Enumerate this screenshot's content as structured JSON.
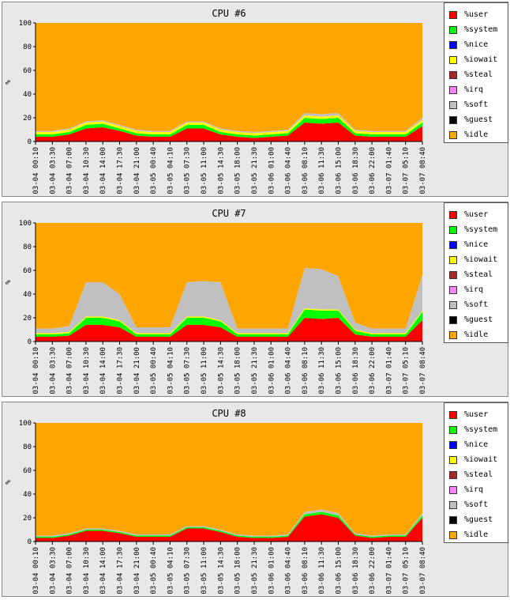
{
  "chart_data": [
    {
      "type": "area",
      "title": "CPU #6",
      "ylabel": "%",
      "xlabel": "",
      "ylim": [
        0,
        100
      ],
      "yticks": [
        0,
        20,
        40,
        60,
        80,
        100
      ],
      "stacked": true,
      "legend_placement": "right",
      "x_tick_labels": [
        "03-04 00:10",
        "03-04 03:30",
        "03-04 07:00",
        "03-04 10:30",
        "03-04 14:00",
        "03-04 17:30",
        "03-04 21:00",
        "03-05 00:40",
        "03-05 04:10",
        "03-05 07:30",
        "03-05 11:00",
        "03-05 14:30",
        "03-05 18:00",
        "03-05 21:30",
        "03-06 01:00",
        "03-06 04:40",
        "03-06 08:10",
        "03-06 11:30",
        "03-06 15:00",
        "03-06 18:30",
        "03-06 22:00",
        "03-07 01:40",
        "03-07 05:10",
        "03-07 08:40"
      ],
      "x": [
        "00:10",
        "03:30",
        "07:00",
        "10:30",
        "14:00",
        "17:30",
        "21:00",
        "00:40",
        "04:10",
        "07:30",
        "11:00",
        "14:30",
        "18:00",
        "21:30",
        "01:00",
        "04:40",
        "08:10",
        "11:30",
        "15:00",
        "18:30",
        "22:00",
        "01:40",
        "05:10",
        "08:40"
      ],
      "series": [
        {
          "name": "%user",
          "color": "#ff0000",
          "values": [
            4,
            4,
            6,
            11,
            12,
            9,
            5,
            4,
            4,
            11,
            11,
            6,
            4,
            3,
            4,
            5,
            16,
            15,
            16,
            5,
            4,
            4,
            4,
            13
          ]
        },
        {
          "name": "%system",
          "color": "#00ff00",
          "values": [
            2,
            2,
            2,
            3,
            3,
            2,
            2,
            2,
            2,
            3,
            3,
            2,
            2,
            2,
            2,
            2,
            4,
            4,
            4,
            2,
            2,
            2,
            2,
            3
          ]
        },
        {
          "name": "%nice",
          "color": "#0000ff",
          "values": [
            0,
            0,
            0,
            0,
            0,
            0,
            0,
            0,
            0,
            0,
            0,
            0,
            0,
            0,
            0,
            0,
            0,
            0,
            0,
            0,
            0,
            0,
            0,
            0
          ]
        },
        {
          "name": "%iowait",
          "color": "#ffff00",
          "values": [
            2,
            2,
            2,
            2,
            2,
            2,
            2,
            2,
            2,
            2,
            2,
            2,
            2,
            2,
            2,
            2,
            2,
            2,
            2,
            2,
            2,
            2,
            2,
            2
          ]
        },
        {
          "name": "%steal",
          "color": "#a52a2a",
          "values": [
            0,
            0,
            0,
            0,
            0,
            0,
            0,
            0,
            0,
            0,
            0,
            0,
            0,
            0,
            0,
            0,
            0,
            0,
            0,
            0,
            0,
            0,
            0,
            0
          ]
        },
        {
          "name": "%irq",
          "color": "#ff80ff",
          "values": [
            0,
            0,
            0,
            0,
            0,
            0,
            0,
            0,
            0,
            0,
            0,
            0,
            0,
            0,
            0,
            0,
            0,
            0,
            0,
            0,
            0,
            0,
            0,
            0
          ]
        },
        {
          "name": "%soft",
          "color": "#c0c0c0",
          "values": [
            1,
            1,
            1,
            1,
            1,
            1,
            1,
            1,
            1,
            1,
            1,
            1,
            1,
            1,
            1,
            1,
            2,
            2,
            2,
            1,
            1,
            1,
            1,
            2
          ]
        },
        {
          "name": "%guest",
          "color": "#000000",
          "values": [
            0,
            0,
            0,
            0,
            0,
            0,
            0,
            0,
            0,
            0,
            0,
            0,
            0,
            0,
            0,
            0,
            0,
            0,
            0,
            0,
            0,
            0,
            0,
            0
          ]
        },
        {
          "name": "%idle",
          "color": "#ffa500",
          "values": [
            91,
            91,
            89,
            83,
            82,
            86,
            90,
            91,
            91,
            83,
            83,
            89,
            91,
            92,
            91,
            90,
            76,
            77,
            76,
            90,
            91,
            91,
            91,
            80
          ]
        }
      ]
    },
    {
      "type": "area",
      "title": "CPU #7",
      "ylabel": "%",
      "xlabel": "",
      "ylim": [
        0,
        100
      ],
      "yticks": [
        0,
        20,
        40,
        60,
        80,
        100
      ],
      "stacked": true,
      "legend_placement": "right",
      "x_tick_labels": [
        "03-04 00:10",
        "03-04 03:30",
        "03-04 07:00",
        "03-04 10:30",
        "03-04 14:00",
        "03-04 17:30",
        "03-04 21:00",
        "03-05 00:40",
        "03-05 04:10",
        "03-05 07:30",
        "03-05 11:00",
        "03-05 14:30",
        "03-05 18:00",
        "03-05 21:30",
        "03-06 01:00",
        "03-06 04:40",
        "03-06 08:10",
        "03-06 11:30",
        "03-06 15:00",
        "03-06 18:30",
        "03-06 22:00",
        "03-07 01:40",
        "03-07 05:10",
        "03-07 08:40"
      ],
      "x": [
        "00:10",
        "03:30",
        "07:00",
        "10:30",
        "14:00",
        "17:30",
        "21:00",
        "00:40",
        "04:10",
        "07:30",
        "11:00",
        "14:30",
        "18:00",
        "21:30",
        "01:00",
        "04:40",
        "08:10",
        "11:30",
        "15:00",
        "18:30",
        "22:00",
        "01:40",
        "05:10",
        "08:40"
      ],
      "series": [
        {
          "name": "%user",
          "color": "#ff0000",
          "values": [
            4,
            4,
            5,
            14,
            14,
            12,
            4,
            4,
            4,
            14,
            14,
            12,
            4,
            4,
            4,
            4,
            20,
            19,
            20,
            6,
            4,
            4,
            4,
            18
          ]
        },
        {
          "name": "%system",
          "color": "#00ff00",
          "values": [
            2,
            2,
            2,
            6,
            6,
            5,
            2,
            2,
            2,
            6,
            6,
            5,
            2,
            2,
            2,
            2,
            7,
            7,
            6,
            3,
            2,
            2,
            2,
            7
          ]
        },
        {
          "name": "%nice",
          "color": "#0000ff",
          "values": [
            0,
            0,
            0,
            0,
            0,
            0,
            0,
            0,
            0,
            0,
            0,
            0,
            0,
            0,
            0,
            0,
            0,
            0,
            0,
            0,
            0,
            0,
            0,
            0
          ]
        },
        {
          "name": "%iowait",
          "color": "#ffff00",
          "values": [
            1,
            1,
            1,
            1,
            1,
            1,
            1,
            1,
            1,
            1,
            1,
            1,
            1,
            1,
            1,
            1,
            1,
            1,
            1,
            1,
            1,
            1,
            1,
            1
          ]
        },
        {
          "name": "%steal",
          "color": "#a52a2a",
          "values": [
            0,
            0,
            0,
            0,
            0,
            0,
            0,
            0,
            0,
            0,
            0,
            0,
            0,
            0,
            0,
            0,
            0,
            0,
            0,
            0,
            0,
            0,
            0,
            0
          ]
        },
        {
          "name": "%irq",
          "color": "#ff80ff",
          "values": [
            0,
            0,
            0,
            0,
            0,
            0,
            0,
            0,
            0,
            0,
            0,
            0,
            0,
            0,
            0,
            0,
            0,
            0,
            0,
            0,
            0,
            0,
            0,
            0
          ]
        },
        {
          "name": "%soft",
          "color": "#c0c0c0",
          "values": [
            4,
            4,
            5,
            29,
            29,
            22,
            5,
            5,
            5,
            29,
            30,
            32,
            4,
            4,
            4,
            4,
            34,
            34,
            28,
            6,
            4,
            4,
            4,
            30
          ]
        },
        {
          "name": "%guest",
          "color": "#000000",
          "values": [
            0,
            0,
            0,
            0,
            0,
            0,
            0,
            0,
            0,
            0,
            0,
            0,
            0,
            0,
            0,
            0,
            0,
            0,
            0,
            0,
            0,
            0,
            0,
            0
          ]
        },
        {
          "name": "%idle",
          "color": "#ffa500",
          "values": [
            89,
            89,
            87,
            50,
            50,
            60,
            88,
            88,
            88,
            50,
            49,
            50,
            89,
            89,
            89,
            89,
            38,
            39,
            45,
            84,
            89,
            89,
            89,
            44
          ]
        }
      ]
    },
    {
      "type": "area",
      "title": "CPU #8",
      "ylabel": "%",
      "xlabel": "",
      "ylim": [
        0,
        100
      ],
      "yticks": [
        0,
        20,
        40,
        60,
        80,
        100
      ],
      "stacked": true,
      "legend_placement": "right",
      "x_tick_labels": [
        "03-04 00:10",
        "03-04 03:30",
        "03-04 07:00",
        "03-04 10:30",
        "03-04 14:00",
        "03-04 17:30",
        "03-04 21:00",
        "03-05 00:40",
        "03-05 04:10",
        "03-05 07:30",
        "03-05 11:00",
        "03-05 14:30",
        "03-05 18:00",
        "03-05 21:30",
        "03-06 01:00",
        "03-06 04:40",
        "03-06 08:10",
        "03-06 11:30",
        "03-06 15:00",
        "03-06 18:30",
        "03-06 22:00",
        "03-07 01:40",
        "03-07 05:10",
        "03-07 08:40"
      ],
      "x": [
        "00:10",
        "03:30",
        "07:00",
        "10:30",
        "14:00",
        "17:30",
        "21:00",
        "00:40",
        "04:10",
        "07:30",
        "11:00",
        "14:30",
        "18:00",
        "21:30",
        "01:00",
        "04:40",
        "08:10",
        "11:30",
        "15:00",
        "18:30",
        "22:00",
        "01:40",
        "05:10",
        "08:40"
      ],
      "series": [
        {
          "name": "%user",
          "color": "#ff0000",
          "values": [
            3,
            3,
            5,
            9,
            9,
            7,
            4,
            4,
            4,
            11,
            11,
            8,
            4,
            3,
            3,
            4,
            21,
            23,
            20,
            5,
            3,
            4,
            4,
            20
          ]
        },
        {
          "name": "%system",
          "color": "#00ff00",
          "values": [
            1,
            1,
            1,
            1,
            1,
            1,
            1,
            1,
            1,
            1,
            1,
            1,
            1,
            1,
            1,
            1,
            2,
            2,
            2,
            1,
            1,
            1,
            1,
            2
          ]
        },
        {
          "name": "%nice",
          "color": "#0000ff",
          "values": [
            0,
            0,
            0,
            0,
            0,
            0,
            0,
            0,
            0,
            0,
            0,
            0,
            0,
            0,
            0,
            0,
            0,
            0,
            0,
            0,
            0,
            0,
            0,
            0
          ]
        },
        {
          "name": "%iowait",
          "color": "#ffff00",
          "values": [
            0,
            0,
            0,
            0,
            0,
            0,
            0,
            0,
            0,
            0,
            0,
            0,
            0,
            0,
            0,
            0,
            0,
            0,
            0,
            0,
            0,
            0,
            0,
            0
          ]
        },
        {
          "name": "%steal",
          "color": "#a52a2a",
          "values": [
            0,
            0,
            0,
            0,
            0,
            0,
            0,
            0,
            0,
            0,
            0,
            0,
            0,
            0,
            0,
            0,
            0,
            0,
            0,
            0,
            0,
            0,
            0,
            0
          ]
        },
        {
          "name": "%irq",
          "color": "#ff80ff",
          "values": [
            0,
            0,
            0,
            0,
            0,
            0,
            0,
            0,
            0,
            0,
            0,
            0,
            0,
            0,
            0,
            0,
            0,
            0,
            0,
            0,
            0,
            0,
            0,
            0
          ]
        },
        {
          "name": "%soft",
          "color": "#c0c0c0",
          "values": [
            1,
            1,
            1,
            1,
            1,
            1,
            1,
            1,
            1,
            1,
            1,
            1,
            1,
            1,
            1,
            1,
            2,
            2,
            2,
            1,
            1,
            1,
            1,
            2
          ]
        },
        {
          "name": "%guest",
          "color": "#000000",
          "values": [
            0,
            0,
            0,
            0,
            0,
            0,
            0,
            0,
            0,
            0,
            0,
            0,
            0,
            0,
            0,
            0,
            0,
            0,
            0,
            0,
            0,
            0,
            0,
            0
          ]
        },
        {
          "name": "%idle",
          "color": "#ffa500",
          "values": [
            95,
            95,
            93,
            89,
            89,
            91,
            94,
            94,
            94,
            87,
            87,
            90,
            94,
            95,
            95,
            94,
            75,
            73,
            76,
            93,
            95,
            94,
            94,
            76
          ]
        }
      ]
    }
  ]
}
